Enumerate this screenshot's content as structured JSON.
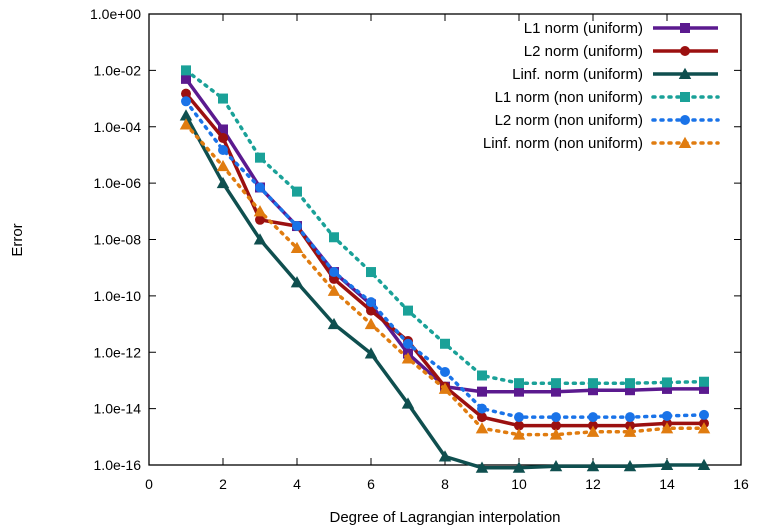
{
  "chart_data": {
    "type": "line",
    "xlabel": "Degree of Lagrangian interpolation",
    "ylabel": "Error",
    "xlim": [
      0,
      16
    ],
    "ylim": [
      1e-16,
      1
    ],
    "yscale": "log",
    "x_ticks": [
      0,
      2,
      4,
      6,
      8,
      10,
      12,
      14,
      16
    ],
    "x_tick_labels": [
      "0",
      "2",
      "4",
      "6",
      "8",
      "10",
      "12",
      "14",
      "16"
    ],
    "y_ticks": [
      1.0,
      0.01,
      0.0001,
      1e-06,
      1e-08,
      1e-10,
      1e-12,
      1e-14,
      1e-16
    ],
    "y_tick_labels": [
      "1.0e+00",
      "1.0e-02",
      "1.0e-04",
      "1.0e-06",
      "1.0e-08",
      "1.0e-10",
      "1.0e-12",
      "1.0e-14",
      "1.0e-16"
    ],
    "grid": false,
    "legend_position": "top-right",
    "x": [
      1,
      2,
      3,
      4,
      5,
      6,
      7,
      8,
      9,
      10,
      11,
      12,
      13,
      14,
      15
    ],
    "series": [
      {
        "name": "L1 norm (uniform)",
        "color": "#5b1a8f",
        "style": "solid",
        "marker": "square",
        "values": [
          0.005,
          8e-05,
          7e-07,
          3e-08,
          7e-10,
          5e-11,
          9e-13,
          6e-14,
          4e-14,
          4e-14,
          4e-14,
          4.5e-14,
          4.5e-14,
          5e-14,
          5e-14
        ]
      },
      {
        "name": "L2 norm (uniform)",
        "color": "#9b1010",
        "style": "solid",
        "marker": "circle",
        "values": [
          0.0015,
          4e-05,
          5e-08,
          3e-08,
          4e-10,
          3e-11,
          2.5e-12,
          6e-14,
          5e-15,
          2.5e-15,
          2.5e-15,
          2.5e-15,
          2.5e-15,
          3e-15,
          3e-15
        ]
      },
      {
        "name": "Linf. norm (uniform)",
        "color": "#0f4f4f",
        "style": "solid",
        "marker": "triangle",
        "values": [
          0.00025,
          1e-06,
          1e-08,
          3e-10,
          1e-11,
          9e-13,
          1.5e-14,
          2e-16,
          8e-17,
          8e-17,
          9e-17,
          9e-17,
          9e-17,
          1e-16,
          1e-16
        ]
      },
      {
        "name": "L1 norm (non uniform)",
        "color": "#1aa198",
        "style": "dotted",
        "marker": "square",
        "values": [
          0.01,
          0.001,
          8e-06,
          5e-07,
          1.2e-08,
          7e-10,
          3e-11,
          2e-12,
          1.5e-13,
          8e-14,
          8e-14,
          8e-14,
          8e-14,
          8.5e-14,
          9e-14
        ]
      },
      {
        "name": "L2 norm (non uniform)",
        "color": "#1a73e8",
        "style": "dotted",
        "marker": "circle",
        "values": [
          0.0008,
          1.5e-05,
          7e-07,
          3e-08,
          7e-10,
          6e-11,
          2e-12,
          2e-13,
          1e-14,
          5e-15,
          5e-15,
          5e-15,
          5e-15,
          5.5e-15,
          6e-15
        ]
      },
      {
        "name": "Linf. norm (non uniform)",
        "color": "#e07c10",
        "style": "dotted",
        "marker": "triangle",
        "values": [
          0.00012,
          4e-06,
          1e-07,
          5e-09,
          1.5e-10,
          1e-11,
          6e-13,
          5e-14,
          2e-15,
          1.2e-15,
          1.2e-15,
          1.5e-15,
          1.5e-15,
          2e-15,
          2e-15
        ]
      }
    ]
  }
}
